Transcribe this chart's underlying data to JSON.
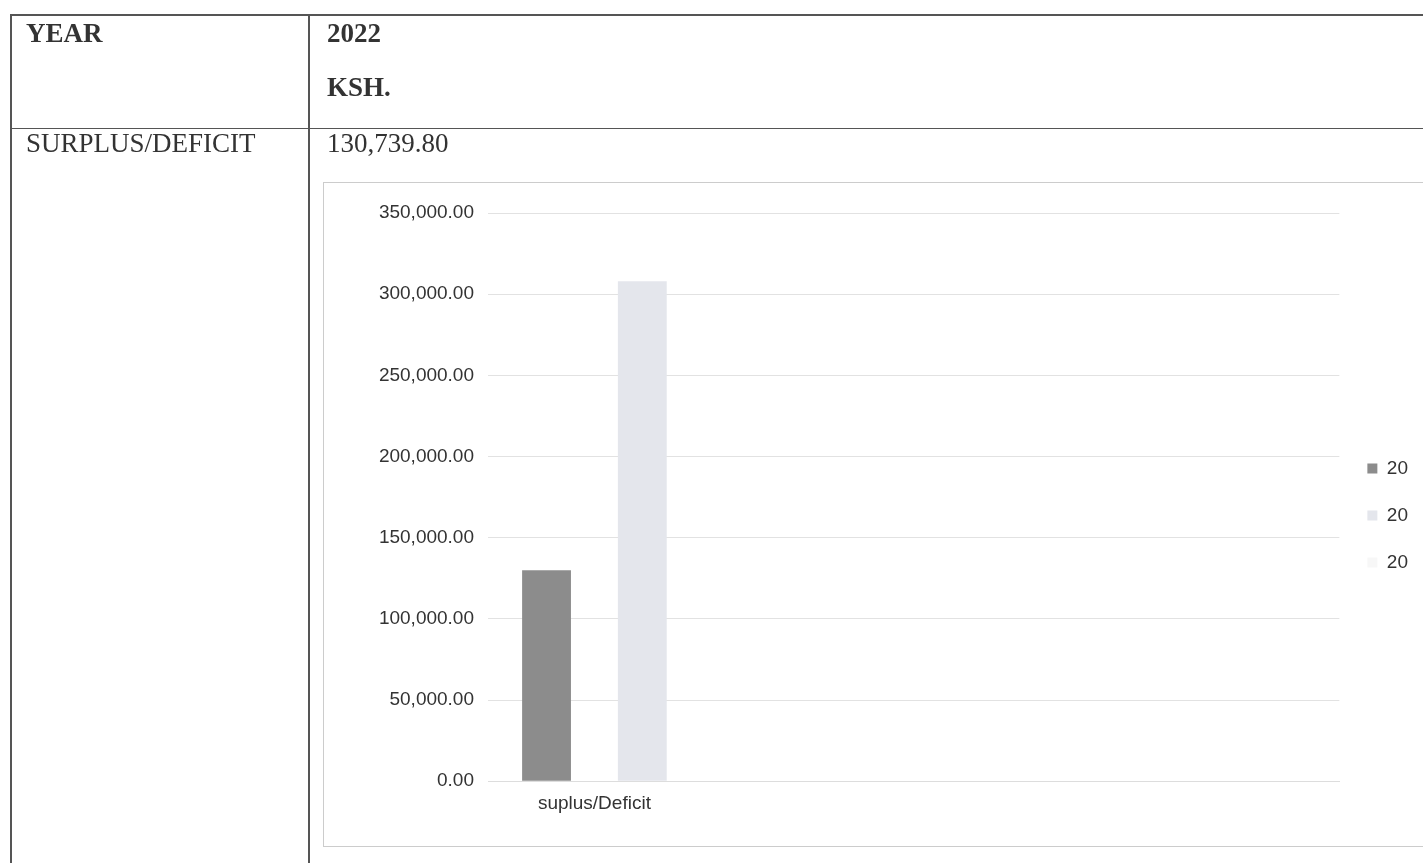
{
  "chart_data": {
    "type": "bar",
    "annotations": [
      "YEAR",
      "2022",
      "KSH.",
      "SURPLUS/DEFICIT",
      "130,739.80"
    ],
    "categories": [
      "suplus/Deficit",
      null,
      null,
      null
    ],
    "series": [
      {
        "name": "20",
        "color": "#8c8c8c",
        "values": [
          130000,
          null,
          null,
          null
        ]
      },
      {
        "name": "20",
        "color": "#e4e6ec",
        "values": [
          308000,
          null,
          null,
          null
        ]
      },
      {
        "name": "20",
        "color": "#f7f7f7",
        "values": [
          null,
          null,
          null,
          null
        ]
      }
    ],
    "ylim": [
      0,
      350000
    ],
    "yticks": [
      {
        "value": 0,
        "label": "0.00"
      },
      {
        "value": 50000,
        "label": "50,000.00"
      },
      {
        "value": 100000,
        "label": "100,000.00"
      },
      {
        "value": 150000,
        "label": "150,000.00"
      },
      {
        "value": 200000,
        "label": "200,000.00"
      },
      {
        "value": 250000,
        "label": "250,000.00"
      },
      {
        "value": 300000,
        "label": "300,000.00"
      },
      {
        "value": 350000,
        "label": "350,000.00"
      }
    ],
    "grid": "y",
    "legend": "right"
  }
}
